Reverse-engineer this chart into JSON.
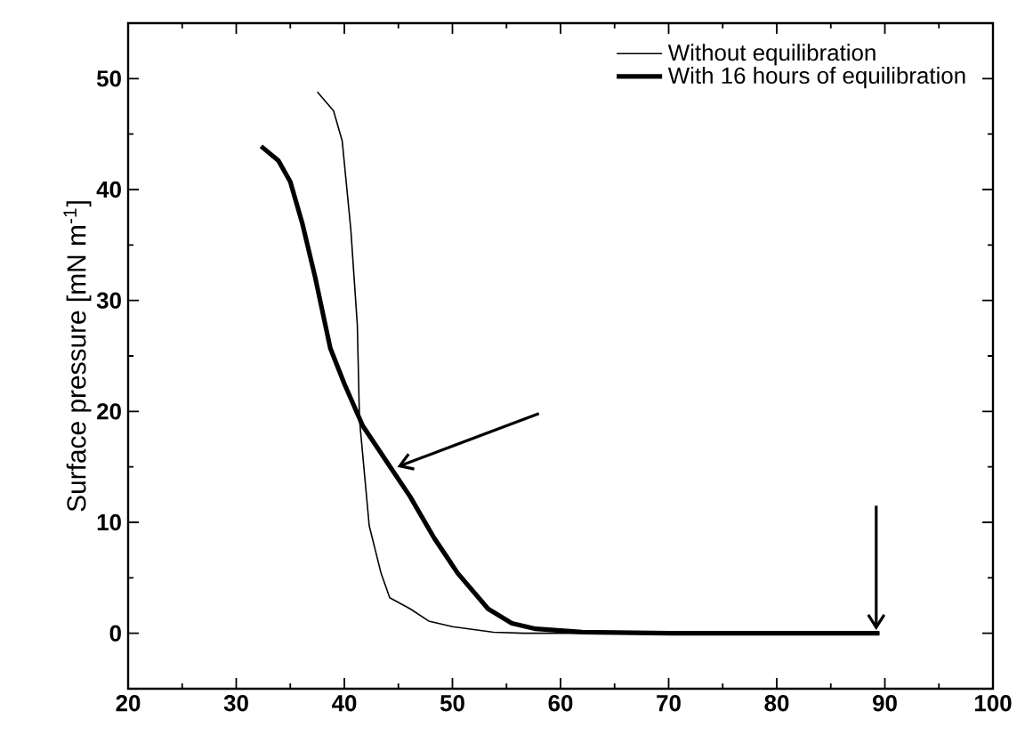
{
  "chart_data": {
    "type": "line",
    "ylabel": "Surface pressure [mN m$^{-1}$]",
    "xlim": [
      20,
      100
    ],
    "ylim": [
      -5,
      55
    ],
    "xticks": [
      20,
      30,
      40,
      50,
      60,
      70,
      80,
      90,
      100
    ],
    "yticks": [
      0,
      10,
      20,
      30,
      40,
      50
    ],
    "legend": "top right",
    "line_style": "solid",
    "grid": false,
    "series": [
      {
        "name": "Without  equilibration",
        "color": "#000000",
        "x": [
          37.5,
          39.0,
          39.8,
          40.6,
          41.2,
          41.4,
          42.3,
          43.4,
          44.2,
          46.1,
          47.8,
          50.0,
          53.8,
          56.6,
          60,
          70,
          80,
          89.5
        ],
        "values": [
          48.8,
          47.1,
          44.4,
          36.4,
          27.8,
          19.3,
          9.7,
          5.4,
          3.2,
          2.2,
          1.1,
          0.6,
          0.1,
          0,
          0,
          0,
          0,
          0
        ]
      },
      {
        "name": "With 16 hours of equilibration",
        "color": "#000000",
        "x": [
          32.3,
          33.9,
          35.0,
          36.1,
          37.3,
          38.7,
          40.0,
          41.7,
          43.9,
          46.1,
          48.3,
          50.5,
          53.3,
          55.5,
          57.7,
          62,
          70,
          80,
          89.5
        ],
        "values": [
          43.9,
          42.6,
          40.7,
          37.0,
          32.1,
          25.7,
          22.5,
          18.7,
          15.5,
          12.3,
          8.6,
          5.4,
          2.2,
          0.9,
          0.4,
          0.1,
          0,
          0,
          0
        ]
      }
    ]
  }
}
